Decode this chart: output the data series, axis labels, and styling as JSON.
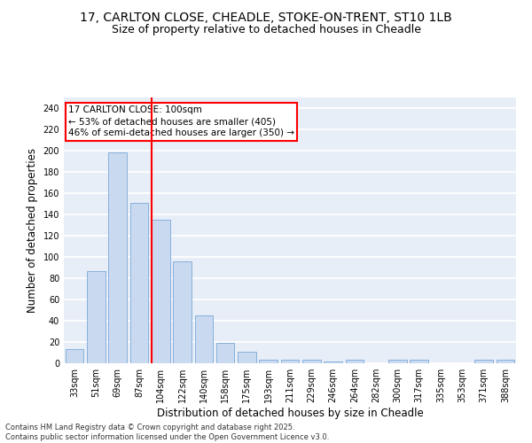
{
  "title_line1": "17, CARLTON CLOSE, CHEADLE, STOKE-ON-TRENT, ST10 1LB",
  "title_line2": "Size of property relative to detached houses in Cheadle",
  "xlabel": "Distribution of detached houses by size in Cheadle",
  "ylabel": "Number of detached properties",
  "categories": [
    "33sqm",
    "51sqm",
    "69sqm",
    "87sqm",
    "104sqm",
    "122sqm",
    "140sqm",
    "158sqm",
    "175sqm",
    "193sqm",
    "211sqm",
    "229sqm",
    "246sqm",
    "264sqm",
    "282sqm",
    "300sqm",
    "317sqm",
    "335sqm",
    "353sqm",
    "371sqm",
    "388sqm"
  ],
  "values": [
    13,
    87,
    198,
    151,
    135,
    96,
    45,
    19,
    11,
    3,
    3,
    3,
    2,
    3,
    0,
    3,
    3,
    0,
    0,
    3,
    3
  ],
  "bar_color": "#c9d9f0",
  "bar_edge_color": "#7aa8d8",
  "vline_x_index": 4,
  "vline_color": "red",
  "annotation_text": "17 CARLTON CLOSE: 100sqm\n← 53% of detached houses are smaller (405)\n46% of semi-detached houses are larger (350) →",
  "annotation_box_color": "white",
  "annotation_box_edge_color": "red",
  "ylim": [
    0,
    250
  ],
  "yticks": [
    0,
    20,
    40,
    60,
    80,
    100,
    120,
    140,
    160,
    180,
    200,
    220,
    240
  ],
  "background_color": "#e8eef8",
  "grid_color": "white",
  "footer": "Contains HM Land Registry data © Crown copyright and database right 2025.\nContains public sector information licensed under the Open Government Licence v3.0.",
  "title_fontsize": 10,
  "subtitle_fontsize": 9,
  "tick_fontsize": 7,
  "ylabel_fontsize": 8.5,
  "xlabel_fontsize": 8.5,
  "annotation_fontsize": 7.5,
  "footer_fontsize": 6
}
